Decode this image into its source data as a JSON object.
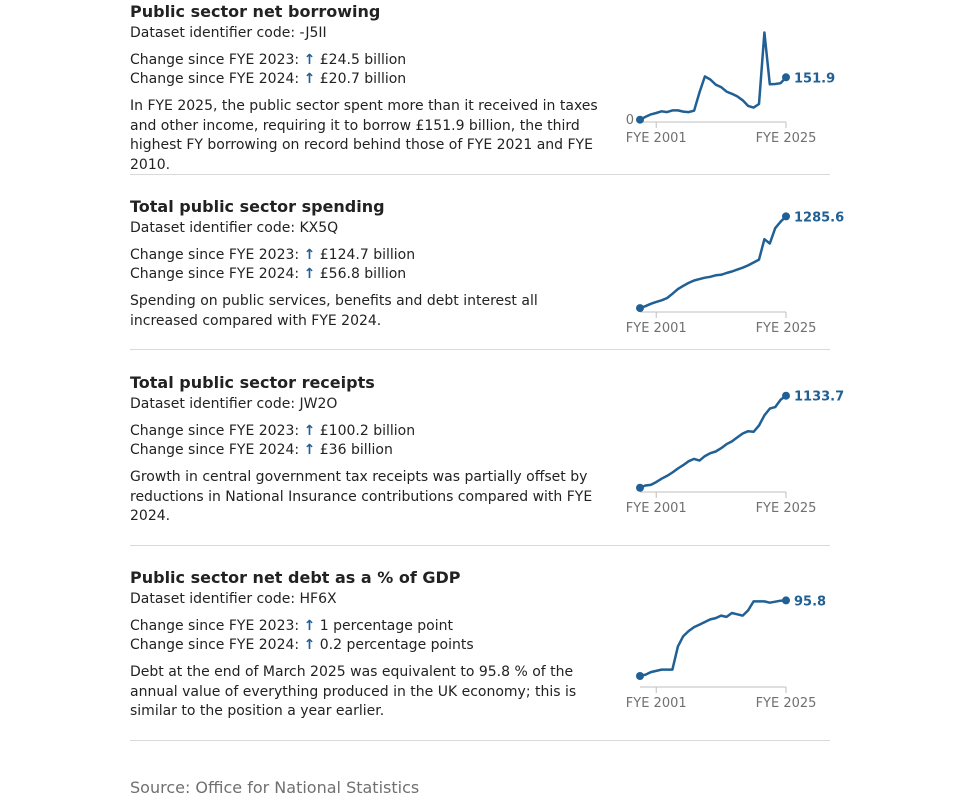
{
  "colors": {
    "line": "#206095",
    "text": "#222222",
    "muted": "#707070",
    "divider": "#d9d9d9"
  },
  "arrow_icon": "arrow-up-icon",
  "panels": [
    {
      "title": "Public sector net borrowing",
      "code": "Dataset identifier code: -J5II",
      "change_2023_label": "Change since FYE 2023:",
      "change_2023_value": "£24.5 billion",
      "change_2024_label": "Change since FYE 2024:",
      "change_2024_value": "£20.7 billion",
      "description": "In FYE 2025, the public sector spent more than it received in taxes and other income, requiring it to borrow £151.9 billion, the third highest FY borrowing on record behind those of FYE 2021 and FYE 2010."
    },
    {
      "title": "Total public sector spending",
      "code": "Dataset identifier code: KX5Q",
      "change_2023_label": "Change since FYE 2023:",
      "change_2023_value": "£124.7 billion",
      "change_2024_label": "Change since FYE 2024:",
      "change_2024_value": "£56.8 billion",
      "description": "Spending on public services, benefits and debt interest all increased compared with FYE 2024."
    },
    {
      "title": "Total public sector receipts",
      "code": "Dataset identifier code: JW2O",
      "change_2023_label": "Change since FYE 2023:",
      "change_2023_value": "£100.2 billion",
      "change_2024_label": "Change since FYE 2024:",
      "change_2024_value": "£36 billion",
      "description": "Growth in central government tax receipts was partially offset by reductions in National Insurance contributions compared with FYE 2024."
    },
    {
      "title": "Public sector net debt as a % of GDP",
      "code": "Dataset identifier code: HF6X",
      "change_2023_label": "Change since FYE 2023:",
      "change_2023_value": "1 percentage point",
      "change_2024_label": "Change since FYE 2024:",
      "change_2024_value": "0.2 percentage points",
      "description": "Debt at the end of March 2025 was equivalent to 95.8 % of the annual value of everything produced in the UK economy; this is similar to the position a year earlier."
    }
  ],
  "source": "Source: Office for National Statistics",
  "chart_data": [
    {
      "type": "line",
      "x": [
        "FYE 1998",
        "FYE 1999",
        "FYE 2000",
        "FYE 2001",
        "FYE 2002",
        "FYE 2003",
        "FYE 2004",
        "FYE 2005",
        "FYE 2006",
        "FYE 2007",
        "FYE 2008",
        "FYE 2009",
        "FYE 2010",
        "FYE 2011",
        "FYE 2012",
        "FYE 2013",
        "FYE 2014",
        "FYE 2015",
        "FYE 2016",
        "FYE 2017",
        "FYE 2018",
        "FYE 2019",
        "FYE 2020",
        "FYE 2021",
        "FYE 2022",
        "FYE 2023",
        "FYE 2024",
        "FYE 2025"
      ],
      "values": [
        1,
        11,
        20,
        25,
        31,
        28,
        34,
        34,
        30,
        28,
        33,
        98,
        155,
        144,
        126,
        117,
        101,
        93,
        84,
        70,
        50,
        44,
        57,
        311,
        127,
        128,
        131,
        151.9
      ],
      "xticks": [
        "FYE 2001",
        "FYE 2025"
      ],
      "yticks": [
        0
      ],
      "end_label": "151.9",
      "ylim": [
        0,
        320
      ]
    },
    {
      "type": "line",
      "x": [
        "FYE 1998",
        "FYE 1999",
        "FYE 2000",
        "FYE 2001",
        "FYE 2002",
        "FYE 2003",
        "FYE 2004",
        "FYE 2005",
        "FYE 2006",
        "FYE 2007",
        "FYE 2008",
        "FYE 2009",
        "FYE 2010",
        "FYE 2011",
        "FYE 2012",
        "FYE 2013",
        "FYE 2014",
        "FYE 2015",
        "FYE 2016",
        "FYE 2017",
        "FYE 2018",
        "FYE 2019",
        "FYE 2020",
        "FYE 2021",
        "FYE 2022",
        "FYE 2023",
        "FYE 2024",
        "FYE 2025"
      ],
      "values": [
        320,
        340,
        365,
        385,
        402,
        425,
        470,
        520,
        555,
        585,
        610,
        625,
        640,
        650,
        665,
        670,
        690,
        705,
        725,
        745,
        770,
        800,
        830,
        1045,
        1000,
        1161,
        1229,
        1285.6
      ],
      "xticks": [
        "FYE 2001",
        "FYE 2025"
      ],
      "yticks": [],
      "end_label": "1285.6",
      "ylim": [
        300,
        1300
      ]
    },
    {
      "type": "line",
      "x": [
        "FYE 1998",
        "FYE 1999",
        "FYE 2000",
        "FYE 2001",
        "FYE 2002",
        "FYE 2003",
        "FYE 2004",
        "FYE 2005",
        "FYE 2006",
        "FYE 2007",
        "FYE 2008",
        "FYE 2009",
        "FYE 2010",
        "FYE 2011",
        "FYE 2012",
        "FYE 2013",
        "FYE 2014",
        "FYE 2015",
        "FYE 2016",
        "FYE 2017",
        "FYE 2018",
        "FYE 2019",
        "FYE 2020",
        "FYE 2021",
        "FYE 2022",
        "FYE 2023",
        "FYE 2024",
        "FYE 2025"
      ],
      "values": [
        320,
        340,
        345,
        370,
        400,
        425,
        455,
        490,
        520,
        555,
        575,
        560,
        600,
        625,
        640,
        670,
        705,
        730,
        765,
        800,
        820,
        815,
        870,
        960,
        1020,
        1033,
        1098,
        1133.7
      ],
      "xticks": [
        "FYE 2001",
        "FYE 2025"
      ],
      "yticks": [],
      "end_label": "1133.7",
      "ylim": [
        300,
        1140
      ]
    },
    {
      "type": "line",
      "x": [
        "FYE 1998",
        "FYE 1999",
        "FYE 2000",
        "FYE 2001",
        "FYE 2002",
        "FYE 2003",
        "FYE 2004",
        "FYE 2005",
        "FYE 2006",
        "FYE 2007",
        "FYE 2008",
        "FYE 2009",
        "FYE 2010",
        "FYE 2011",
        "FYE 2012",
        "FYE 2013",
        "FYE 2014",
        "FYE 2015",
        "FYE 2016",
        "FYE 2017",
        "FYE 2018",
        "FYE 2019",
        "FYE 2020",
        "FYE 2021",
        "FYE 2022",
        "FYE 2023",
        "FYE 2024",
        "FYE 2025"
      ],
      "values": [
        37,
        38,
        40,
        41,
        42,
        42,
        42,
        60,
        68,
        72,
        75,
        77,
        79,
        81,
        82,
        84,
        83,
        86,
        85,
        84,
        88,
        95,
        95,
        95,
        94,
        94.8,
        95.6,
        95.8
      ],
      "xticks": [
        "FYE 2001",
        "FYE 2025"
      ],
      "yticks": [],
      "end_label": "95.8",
      "ylim": [
        30,
        100
      ]
    }
  ]
}
